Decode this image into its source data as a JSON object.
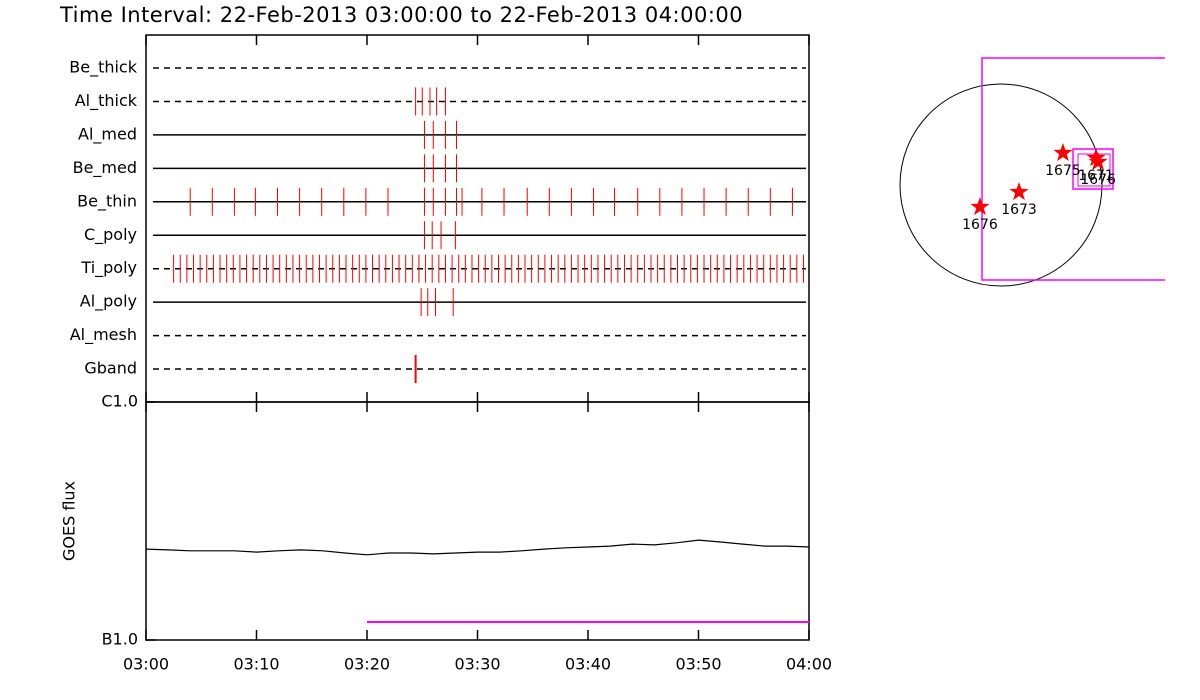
{
  "title": "Time Interval: 22-Feb-2013 03:00:00 to 22-Feb-2013 04:00:00",
  "chart_data": [
    {
      "type": "timeline",
      "color": "#ff0000",
      "xlim": [
        0,
        60
      ],
      "categories": [
        "Be_thick",
        "Al_thick",
        "Al_med",
        "Be_med",
        "Be_thin",
        "C_poly",
        "Ti_poly",
        "Al_poly",
        "Al_mesh",
        "Gband"
      ],
      "line_styles": [
        "dashed",
        "dashed",
        "solid",
        "solid",
        "solid",
        "solid",
        "dashed",
        "solid",
        "dashed",
        "dashed"
      ],
      "events": [
        [],
        [
          24.4,
          25.0,
          25.7,
          26.3,
          27.1
        ],
        [
          25.2,
          26.0,
          27.1,
          28.1
        ],
        [
          25.2,
          26.0,
          27.1,
          28.1
        ],
        [
          4.0,
          6.0,
          8.0,
          9.9,
          11.9,
          13.9,
          15.9,
          17.9,
          19.9,
          21.9,
          25.2,
          26.0,
          27.1,
          28.1,
          28.6,
          30.4,
          32.4,
          34.5,
          36.5,
          38.5,
          40.5,
          42.4,
          44.5,
          46.5,
          48.5,
          50.5,
          52.5,
          54.5,
          56.5,
          58.5
        ],
        [
          25.2,
          25.9,
          26.7,
          28.0
        ],
        [
          2.5,
          3.1,
          3.7,
          4.3,
          4.9,
          5.5,
          6.1,
          6.7,
          7.3,
          7.9,
          8.5,
          9.1,
          9.7,
          10.3,
          10.9,
          11.5,
          12.1,
          12.7,
          13.3,
          13.9,
          14.5,
          15.1,
          15.7,
          16.3,
          16.9,
          17.5,
          18.1,
          18.7,
          19.3,
          19.9,
          20.5,
          21.1,
          21.7,
          22.3,
          22.9,
          23.5,
          24.1,
          24.7,
          25.3,
          25.9,
          26.5,
          27.1,
          27.7,
          28.3,
          28.9,
          29.5,
          30.1,
          30.7,
          31.3,
          31.9,
          32.5,
          33.1,
          33.7,
          34.3,
          34.9,
          35.5,
          36.1,
          36.7,
          37.3,
          37.9,
          38.5,
          39.1,
          39.7,
          40.3,
          40.9,
          41.5,
          42.1,
          42.7,
          43.3,
          43.9,
          44.5,
          45.1,
          45.7,
          46.3,
          46.9,
          47.5,
          48.1,
          48.7,
          49.3,
          49.9,
          50.5,
          51.1,
          51.7,
          52.3,
          52.9,
          53.5,
          54.1,
          54.7,
          55.3,
          55.9,
          56.5,
          57.1,
          57.7,
          58.3,
          58.9,
          59.5
        ],
        [
          24.9,
          25.5,
          26.2,
          27.8
        ],
        [],
        [
          24.4
        ]
      ]
    },
    {
      "type": "line",
      "ylabel": "GOES flux",
      "log_scale": true,
      "xlim": [
        0,
        60
      ],
      "xticks": [
        {
          "value": 0,
          "label": "03:00"
        },
        {
          "value": 10,
          "label": "03:10"
        },
        {
          "value": 20,
          "label": "03:20"
        },
        {
          "value": 30,
          "label": "03:30"
        },
        {
          "value": 40,
          "label": "03:40"
        },
        {
          "value": 50,
          "label": "03:50"
        },
        {
          "value": 60,
          "label": "04:00"
        }
      ],
      "ylim": [
        1e-07,
        1e-06
      ],
      "yticks": [
        {
          "value": 1e-07,
          "label": "B1.0"
        },
        {
          "value": 1e-06,
          "label": "C1.0"
        }
      ],
      "series": [
        {
          "color": "#000000",
          "x": [
            0,
            2,
            4,
            6,
            8,
            10,
            12,
            14,
            16,
            18,
            20,
            22,
            24,
            26,
            28,
            30,
            32,
            34,
            36,
            38,
            40,
            42,
            44,
            46,
            48,
            50,
            52,
            54,
            56,
            58,
            60
          ],
          "values": [
            2.41e-07,
            2.39e-07,
            2.37e-07,
            2.37e-07,
            2.37e-07,
            2.34e-07,
            2.37e-07,
            2.39e-07,
            2.37e-07,
            2.32e-07,
            2.28e-07,
            2.32e-07,
            2.32e-07,
            2.3e-07,
            2.32e-07,
            2.34e-07,
            2.34e-07,
            2.37e-07,
            2.41e-07,
            2.44e-07,
            2.46e-07,
            2.48e-07,
            2.53e-07,
            2.51e-07,
            2.56e-07,
            2.63e-07,
            2.58e-07,
            2.53e-07,
            2.48e-07,
            2.48e-07,
            2.46e-07
          ]
        },
        {
          "color": "#ff00ff",
          "x": [
            20,
            60
          ],
          "values": [
            1.19e-07,
            1.19e-07
          ]
        }
      ]
    },
    {
      "type": "map",
      "color": "#ff0000",
      "points": [
        {
          "x": -203,
          "y": -212,
          "label": "1676"
        },
        {
          "x": 174,
          "y": -68,
          "label": "1673"
        },
        {
          "x": 598,
          "y": 309,
          "label": "1675"
        },
        {
          "x": 917,
          "y": 261,
          "label": "1671"
        },
        {
          "x": 937,
          "y": 222,
          "label": "1676"
        }
      ]
    }
  ]
}
